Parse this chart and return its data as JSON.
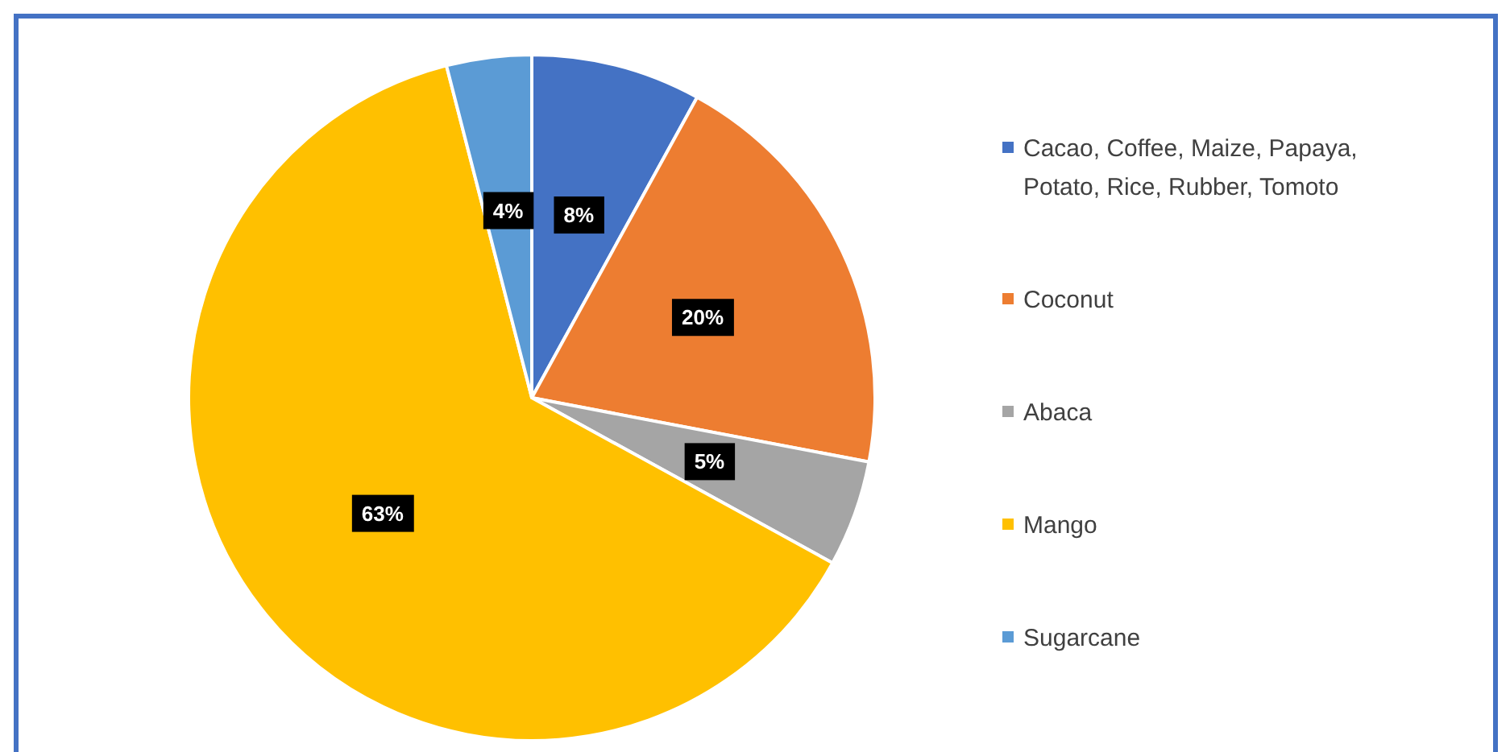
{
  "chart_data": {
    "type": "pie",
    "categories": [
      "Cacao, Coffee, Maize, Papaya, Potato, Rice, Rubber, Tomoto",
      "Coconut",
      "Abaca",
      "Mango",
      "Sugarcane"
    ],
    "values": [
      8,
      20,
      5,
      63,
      4
    ],
    "colors": [
      "#4472c4",
      "#ed7d31",
      "#a5a5a5",
      "#ffc000",
      "#5b9bd5"
    ],
    "value_labels": [
      "8%",
      "20%",
      "5%",
      "63%",
      "4%"
    ],
    "legend": "right"
  }
}
